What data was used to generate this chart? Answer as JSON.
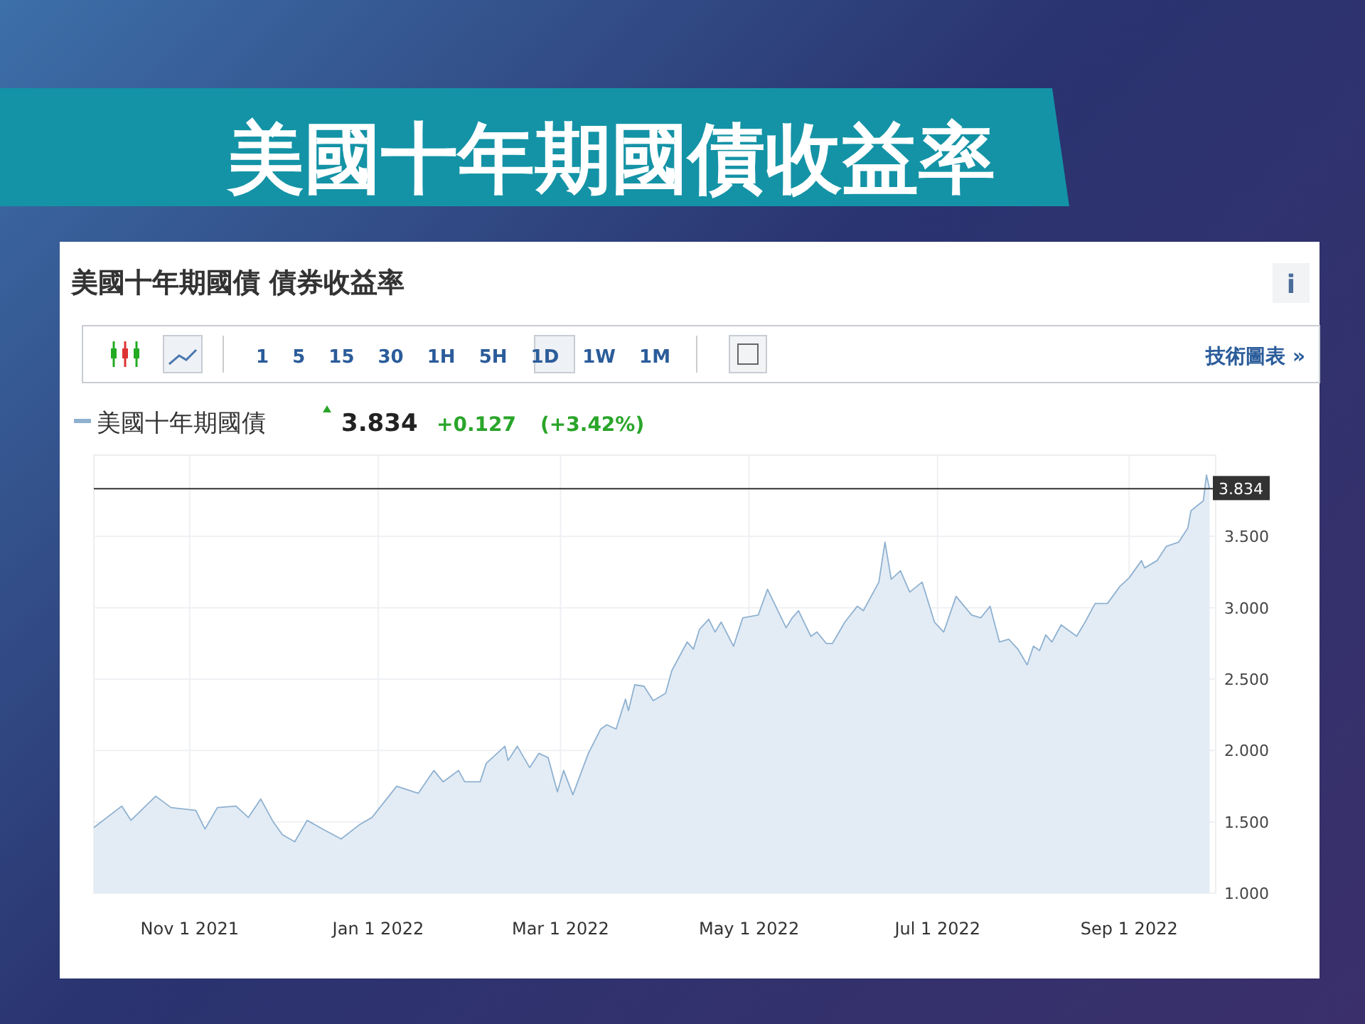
{
  "chart_data": {
    "type": "area",
    "title": "美國十年期國債收益率",
    "subtitle": "美國十年期國債 債券收益率",
    "x": [
      "2021-10-01",
      "2021-10-10",
      "2021-10-13",
      "2021-10-21",
      "2021-10-26",
      "2021-11-03",
      "2021-11-06",
      "2021-11-10",
      "2021-11-16",
      "2021-11-20",
      "2021-11-24",
      "2021-11-28",
      "2021-12-01",
      "2021-12-05",
      "2021-12-09",
      "2021-12-14",
      "2021-12-20",
      "2021-12-26",
      "2021-12-30",
      "2022-01-07",
      "2022-01-14",
      "2022-01-19",
      "2022-01-22",
      "2022-01-27",
      "2022-01-29",
      "2022-02-03",
      "2022-02-05",
      "2022-02-11",
      "2022-02-12",
      "2022-02-15",
      "2022-02-19",
      "2022-02-22",
      "2022-02-25",
      "2022-02-28",
      "2022-03-02",
      "2022-03-05",
      "2022-03-10",
      "2022-03-14",
      "2022-03-16",
      "2022-03-19",
      "2022-03-22",
      "2022-03-23",
      "2022-03-25",
      "2022-03-28",
      "2022-03-31",
      "2022-04-04",
      "2022-04-06",
      "2022-04-11",
      "2022-04-13",
      "2022-04-15",
      "2022-04-18",
      "2022-04-20",
      "2022-04-22",
      "2022-04-26",
      "2022-04-29",
      "2022-05-04",
      "2022-05-07",
      "2022-05-13",
      "2022-05-15",
      "2022-05-17",
      "2022-05-21",
      "2022-05-23",
      "2022-05-26",
      "2022-05-28",
      "2022-06-01",
      "2022-06-05",
      "2022-06-07",
      "2022-06-12",
      "2022-06-14",
      "2022-06-16",
      "2022-06-19",
      "2022-06-22",
      "2022-06-26",
      "2022-06-30",
      "2022-07-03",
      "2022-07-07",
      "2022-07-12",
      "2022-07-15",
      "2022-07-18",
      "2022-07-21",
      "2022-07-24",
      "2022-07-27",
      "2022-07-30",
      "2022-08-01",
      "2022-08-03",
      "2022-08-05",
      "2022-08-07",
      "2022-08-10",
      "2022-08-15",
      "2022-08-18",
      "2022-08-21",
      "2022-08-25",
      "2022-08-29",
      "2022-09-01",
      "2022-09-05",
      "2022-09-06",
      "2022-09-10",
      "2022-09-13",
      "2022-09-17",
      "2022-09-20",
      "2022-09-21",
      "2022-09-25",
      "2022-09-26",
      "2022-09-27"
    ],
    "series": [
      {
        "name": "美國十年期國債",
        "color": "#8fb1d0",
        "values": [
          1.46,
          1.61,
          1.51,
          1.68,
          1.6,
          1.58,
          1.45,
          1.6,
          1.61,
          1.53,
          1.66,
          1.5,
          1.41,
          1.36,
          1.51,
          1.45,
          1.38,
          1.48,
          1.53,
          1.75,
          1.7,
          1.86,
          1.78,
          1.86,
          1.78,
          1.78,
          1.91,
          2.03,
          1.93,
          2.03,
          1.88,
          1.98,
          1.95,
          1.71,
          1.86,
          1.69,
          1.98,
          2.15,
          2.18,
          2.15,
          2.36,
          2.28,
          2.46,
          2.45,
          2.35,
          2.4,
          2.56,
          2.76,
          2.71,
          2.85,
          2.92,
          2.83,
          2.9,
          2.73,
          2.93,
          2.95,
          3.13,
          2.86,
          2.93,
          2.98,
          2.8,
          2.83,
          2.75,
          2.75,
          2.9,
          3.01,
          2.98,
          3.18,
          3.46,
          3.2,
          3.26,
          3.11,
          3.18,
          2.9,
          2.83,
          3.08,
          2.95,
          2.93,
          3.01,
          2.76,
          2.78,
          2.71,
          2.6,
          2.73,
          2.7,
          2.81,
          2.76,
          2.88,
          2.8,
          2.91,
          3.03,
          3.03,
          3.15,
          3.21,
          3.33,
          3.28,
          3.33,
          3.43,
          3.46,
          3.56,
          3.68,
          3.75,
          3.93,
          3.834
        ]
      }
    ],
    "xlim": [
      "2021-10-01",
      "2022-09-29"
    ],
    "ylim": [
      1,
      4.07
    ],
    "xticks": [
      {
        "value": "2021-11-01",
        "label": "Nov 1 2021"
      },
      {
        "value": "2022-01-01",
        "label": "Jan 1 2022"
      },
      {
        "value": "2022-03-01",
        "label": "Mar 1 2022"
      },
      {
        "value": "2022-05-01",
        "label": "May 1 2022"
      },
      {
        "value": "2022-07-01",
        "label": "Jul 1 2022"
      },
      {
        "value": "2022-09-01",
        "label": "Sep 1 2022"
      }
    ],
    "yticks": [
      {
        "value": 1,
        "label": "1.000"
      },
      {
        "value": 1.5,
        "label": "1.500"
      },
      {
        "value": 2,
        "label": "2.000"
      },
      {
        "value": 2.5,
        "label": "2.500"
      },
      {
        "value": 3,
        "label": "3.000"
      },
      {
        "value": 3.5,
        "label": "3.500"
      }
    ],
    "ref_lines": [
      {
        "axis": "y",
        "value": 3.834,
        "label": "3.834",
        "color": "#333333"
      }
    ],
    "grid": true,
    "legend": "top left",
    "annotations": [
      "3.834",
      "+0.127",
      "(+3.42%)",
      "1 5 15 30 1H 5H 1D 1W 1M",
      "技術圖表 »",
      "i"
    ]
  }
}
